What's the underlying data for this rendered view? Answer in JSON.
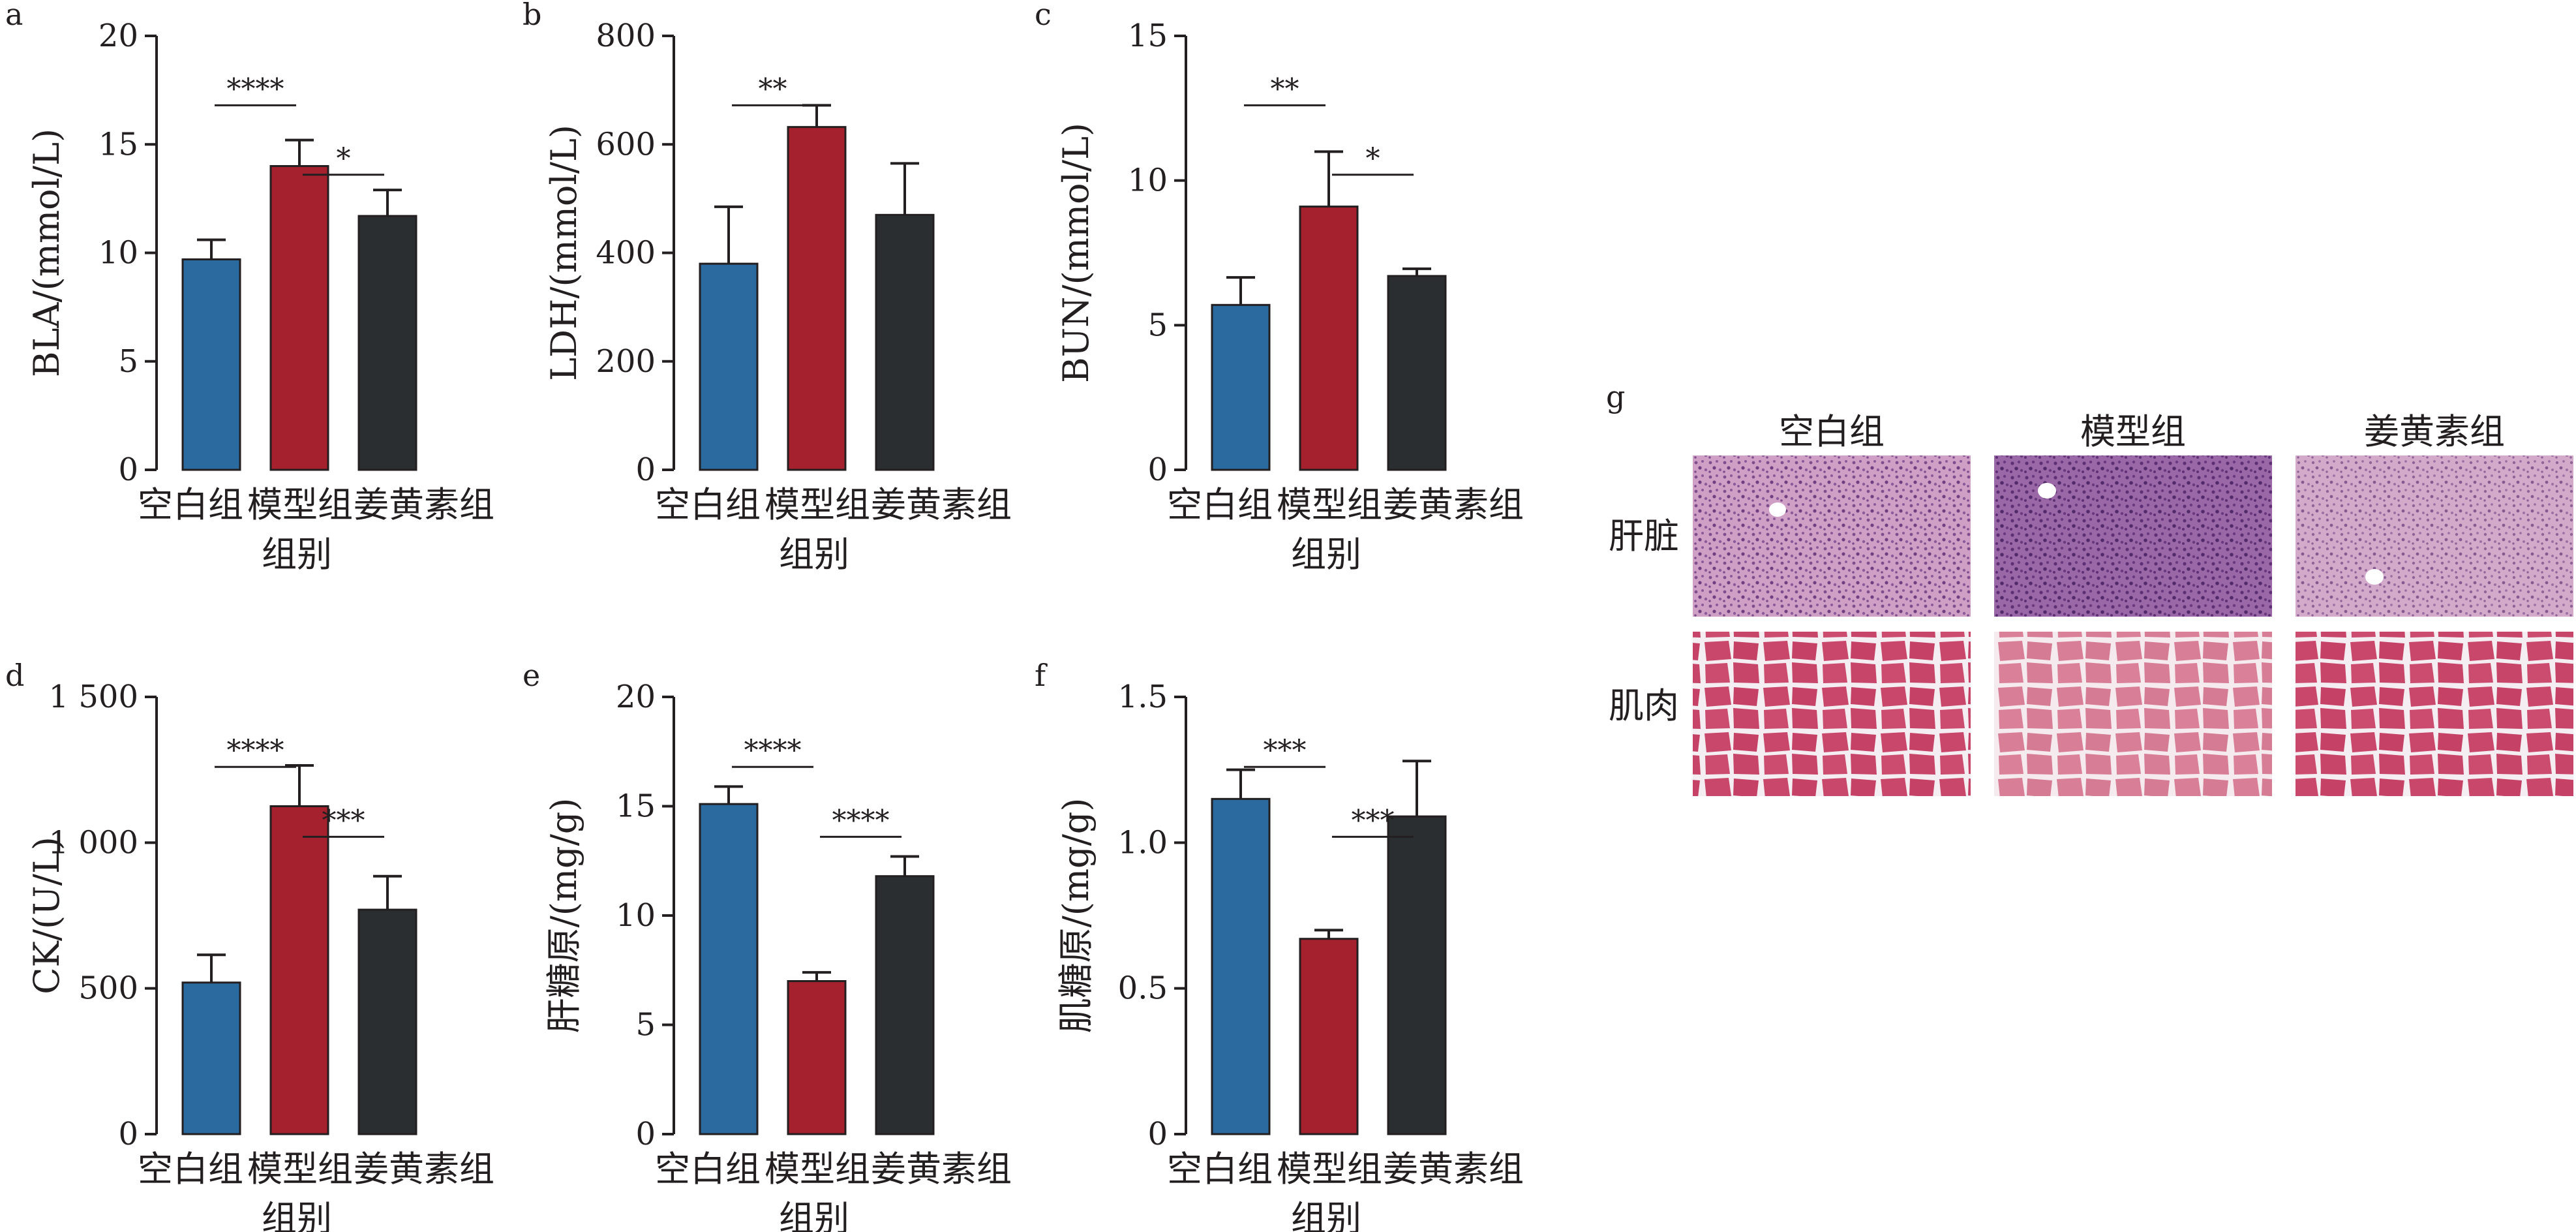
{
  "chart_data": [
    {
      "panel": "a",
      "type": "bar",
      "categories": [
        "空白组",
        "模型组",
        "姜黄素组"
      ],
      "values": [
        9.7,
        14.0,
        11.7
      ],
      "errors": [
        0.9,
        1.2,
        1.2
      ],
      "xlabel": "组别",
      "ylabel": "BLA/(mmol/L)",
      "ylim": [
        0,
        20
      ],
      "yticks": [
        0,
        5,
        10,
        15,
        20
      ],
      "ytick_labels": [
        "0",
        "5",
        "10",
        "15",
        "20"
      ],
      "significance": [
        {
          "from": 0,
          "to": 1,
          "label": "****"
        },
        {
          "from": 1,
          "to": 2,
          "label": "*"
        }
      ],
      "colors": [
        "#2b6a9e",
        "#a4212d",
        "#2b2e30"
      ]
    },
    {
      "panel": "b",
      "type": "bar",
      "categories": [
        "空白组",
        "模型组",
        "姜黄素组"
      ],
      "values": [
        380,
        632,
        470
      ],
      "errors": [
        105,
        40,
        95
      ],
      "xlabel": "组别",
      "ylabel": "LDH/(mmol/L)",
      "ylim": [
        0,
        800
      ],
      "yticks": [
        0,
        200,
        400,
        600,
        800
      ],
      "ytick_labels": [
        "0",
        "200",
        "400",
        "600",
        "800"
      ],
      "significance": [
        {
          "from": 0,
          "to": 1,
          "label": "**"
        }
      ],
      "colors": [
        "#2b6a9e",
        "#a4212d",
        "#2b2e30"
      ]
    },
    {
      "panel": "c",
      "type": "bar",
      "categories": [
        "空白组",
        "模型组",
        "姜黄素组"
      ],
      "values": [
        5.7,
        9.1,
        6.7
      ],
      "errors": [
        0.95,
        1.9,
        0.25
      ],
      "xlabel": "组别",
      "ylabel": "BUN/(mmol/L)",
      "ylim": [
        0,
        15
      ],
      "yticks": [
        0,
        5,
        10,
        15
      ],
      "ytick_labels": [
        "0",
        "5",
        "10",
        "15"
      ],
      "significance": [
        {
          "from": 0,
          "to": 1,
          "label": "**"
        },
        {
          "from": 1,
          "to": 2,
          "label": "*"
        }
      ],
      "colors": [
        "#2b6a9e",
        "#a4212d",
        "#2b2e30"
      ]
    },
    {
      "panel": "d",
      "type": "bar",
      "categories": [
        "空白组",
        "模型组",
        "姜黄素组"
      ],
      "values": [
        520,
        1125,
        770
      ],
      "errors": [
        95,
        140,
        115
      ],
      "xlabel": "组别",
      "ylabel": "CK/(U/L)",
      "ylim": [
        0,
        1500
      ],
      "yticks": [
        0,
        500,
        1000,
        1500
      ],
      "ytick_labels": [
        "0",
        "500",
        "1 000",
        "1 500"
      ],
      "significance": [
        {
          "from": 0,
          "to": 1,
          "label": "****"
        },
        {
          "from": 1,
          "to": 2,
          "label": "***"
        }
      ],
      "colors": [
        "#2b6a9e",
        "#a4212d",
        "#2b2e30"
      ]
    },
    {
      "panel": "e",
      "type": "bar",
      "categories": [
        "空白组",
        "模型组",
        "姜黄素组"
      ],
      "values": [
        15.1,
        7.0,
        11.8
      ],
      "errors": [
        0.8,
        0.4,
        0.9
      ],
      "xlabel": "组别",
      "ylabel": "肝糖原/(mg/g)",
      "ylim": [
        0,
        20
      ],
      "yticks": [
        0,
        5,
        10,
        15,
        20
      ],
      "ytick_labels": [
        "0",
        "5",
        "10",
        "15",
        "20"
      ],
      "significance": [
        {
          "from": 0,
          "to": 1,
          "label": "****"
        },
        {
          "from": 1,
          "to": 2,
          "label": "****"
        }
      ],
      "colors": [
        "#2b6a9e",
        "#a4212d",
        "#2b2e30"
      ]
    },
    {
      "panel": "f",
      "type": "bar",
      "categories": [
        "空白组",
        "模型组",
        "姜黄素组"
      ],
      "values": [
        1.15,
        0.67,
        1.09
      ],
      "errors": [
        0.1,
        0.03,
        0.19
      ],
      "xlabel": "组别",
      "ylabel": "肌糖原/(mg/g)",
      "ylim": [
        0,
        1.5
      ],
      "yticks": [
        0,
        0.5,
        1.0,
        1.5
      ],
      "ytick_labels": [
        "0",
        "0.5",
        "1.0",
        "1.5"
      ],
      "significance": [
        {
          "from": 0,
          "to": 1,
          "label": "***"
        },
        {
          "from": 1,
          "to": 2,
          "label": "***"
        }
      ],
      "colors": [
        "#2b6a9e",
        "#a4212d",
        "#2b2e30"
      ]
    }
  ],
  "histology": {
    "panel": "g",
    "columns": [
      "空白组",
      "模型组",
      "姜黄素组"
    ],
    "rows": [
      "肝脏",
      "肌肉"
    ]
  }
}
